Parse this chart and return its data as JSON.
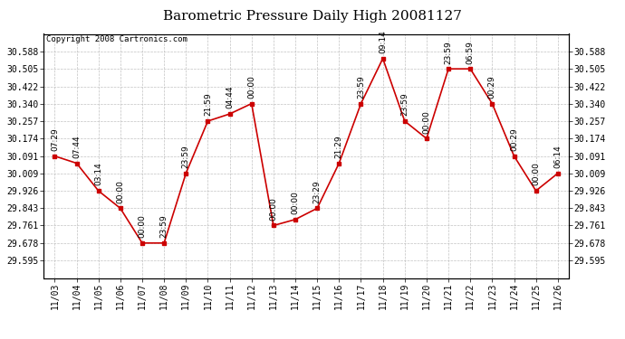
{
  "title": "Barometric Pressure Daily High 20081127",
  "copyright": "Copyright 2008 Cartronics.com",
  "x_labels": [
    "11/03",
    "11/04",
    "11/05",
    "11/06",
    "11/07",
    "11/08",
    "11/09",
    "11/10",
    "11/11",
    "11/12",
    "11/13",
    "11/14",
    "11/15",
    "11/16",
    "11/17",
    "11/18",
    "11/19",
    "11/20",
    "11/21",
    "11/22",
    "11/23",
    "11/24",
    "11/25",
    "11/26"
  ],
  "y_values": [
    30.091,
    30.057,
    29.926,
    29.843,
    29.678,
    29.678,
    30.009,
    30.257,
    30.291,
    30.34,
    29.761,
    29.79,
    29.843,
    30.057,
    30.34,
    30.554,
    30.257,
    30.174,
    30.505,
    30.505,
    30.34,
    30.091,
    29.926,
    30.009
  ],
  "point_labels": [
    "07:29",
    "07:44",
    "03:14",
    "00:00",
    "00:00",
    "23:59",
    "23:59",
    "21:59",
    "04:44",
    "00:00",
    "00:00",
    "00:00",
    "23:29",
    "21:29",
    "23:59",
    "09:14",
    "23:59",
    "00:00",
    "23:59",
    "06:59",
    "00:29",
    "00:29",
    "00:00",
    "06:14"
  ],
  "y_ticks": [
    29.595,
    29.678,
    29.761,
    29.843,
    29.926,
    30.009,
    30.091,
    30.174,
    30.257,
    30.34,
    30.422,
    30.505,
    30.588
  ],
  "y_tick_labels": [
    "29.595",
    "29.678",
    "29.761",
    "29.843",
    "29.926",
    "30.009",
    "30.091",
    "30.174",
    "30.257",
    "30.340",
    "30.422",
    "30.505",
    "30.588"
  ],
  "line_color": "#cc0000",
  "marker_color": "#cc0000",
  "bg_color": "#ffffff",
  "grid_color": "#bbbbbb",
  "title_fontsize": 11,
  "annot_fontsize": 6.5,
  "tick_fontsize": 7,
  "copyright_fontsize": 6.5,
  "y_min": 29.512,
  "y_max": 30.671
}
